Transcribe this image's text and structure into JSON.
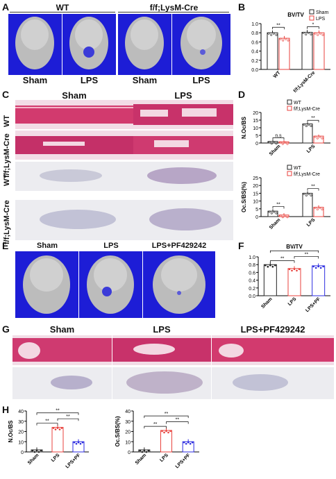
{
  "panels": {
    "A": {
      "letter": "A",
      "groups": [
        "WT",
        "f/f;LysM-Cre"
      ],
      "columns": [
        "Sham",
        "LPS",
        "Sham",
        "LPS"
      ]
    },
    "B": {
      "letter": "B"
    },
    "C": {
      "letter": "C",
      "columns": [
        "Sham",
        "LPS"
      ],
      "rows": [
        "WT",
        "f/f;LysM-Cre",
        "WT",
        "f/f;LysM-Cre"
      ]
    },
    "D": {
      "letter": "D"
    },
    "E": {
      "letter": "E",
      "columns": [
        "Sham",
        "LPS",
        "LPS+PF429242"
      ]
    },
    "F": {
      "letter": "F"
    },
    "G": {
      "letter": "G",
      "columns": [
        "Sham",
        "LPS",
        "LPS+PF429242"
      ]
    },
    "H": {
      "letter": "H"
    }
  },
  "colors": {
    "skull_bg": "#1d1dd6",
    "he_stain": "#d23a6e",
    "wt": "#222222",
    "lps": "#e8413c",
    "pf": "#2b2be0"
  },
  "chart_data": [
    {
      "id": "B",
      "type": "bar",
      "title": "BV/TV",
      "categories": [
        "WT",
        "f/f;LysM-Cre"
      ],
      "legend": [
        "Sham",
        "LPS"
      ],
      "series": [
        {
          "name": "Sham",
          "values": [
            0.8,
            0.81
          ]
        },
        {
          "name": "LPS",
          "values": [
            0.68,
            0.8
          ]
        }
      ],
      "ylim": [
        0,
        1.0
      ],
      "yticks": [
        "0.0",
        "0.2",
        "0.4",
        "0.6",
        "0.8",
        "1.0"
      ],
      "significance": [
        "**",
        "*"
      ]
    },
    {
      "id": "D1",
      "type": "bar",
      "categories": [
        "Sham",
        "LPS"
      ],
      "legend": [
        "WT",
        "f/f;LysM-Cre"
      ],
      "series": [
        {
          "name": "WT",
          "values": [
            1.0,
            12.5
          ]
        },
        {
          "name": "f/f;LysM-Cre",
          "values": [
            0.8,
            4.5
          ]
        }
      ],
      "ylabel": "N.Oc/BS",
      "ylim": [
        0,
        20
      ],
      "yticks": [
        "0",
        "5",
        "10",
        "15",
        "20"
      ],
      "significance": [
        "n.s",
        "**"
      ]
    },
    {
      "id": "D2",
      "type": "bar",
      "categories": [
        "Sham",
        "LPS"
      ],
      "legend": [
        "WT",
        "f/f;LysM-Cre"
      ],
      "series": [
        {
          "name": "WT",
          "values": [
            3.5,
            15
          ]
        },
        {
          "name": "f/f;LysM-Cre",
          "values": [
            1.0,
            6
          ]
        }
      ],
      "ylabel": "Oc.S/BS(%)",
      "ylim": [
        0,
        25
      ],
      "yticks": [
        "0",
        "5",
        "10",
        "15",
        "20",
        "25"
      ],
      "significance": [
        "**",
        "**"
      ]
    },
    {
      "id": "F",
      "type": "bar",
      "title": "BV/TV",
      "categories": [
        "Sham",
        "LPS",
        "LPS+PF"
      ],
      "values": [
        0.8,
        0.7,
        0.77
      ],
      "ylim": [
        0,
        1.0
      ],
      "yticks": [
        "0.0",
        "0.2",
        "0.4",
        "0.6",
        "0.8",
        "1.0"
      ],
      "significance": [
        "**",
        "**",
        "*"
      ]
    },
    {
      "id": "H1",
      "type": "bar",
      "categories": [
        "Sham",
        "LPS",
        "LPS+PF"
      ],
      "values": [
        2,
        24,
        10
      ],
      "ylabel": "N.Oc/BS",
      "ylim": [
        0,
        40
      ],
      "yticks": [
        "0",
        "10",
        "20",
        "30",
        "40"
      ],
      "significance": [
        "**",
        "**",
        "**"
      ]
    },
    {
      "id": "H2",
      "type": "bar",
      "categories": [
        "Sham",
        "LPS",
        "LPS+PF"
      ],
      "values": [
        2,
        21,
        10
      ],
      "ylabel": "Oc.S/BS(%)",
      "ylim": [
        0,
        40
      ],
      "yticks": [
        "0",
        "10",
        "20",
        "30",
        "40"
      ],
      "significance": [
        "**",
        "**",
        "**"
      ]
    }
  ]
}
